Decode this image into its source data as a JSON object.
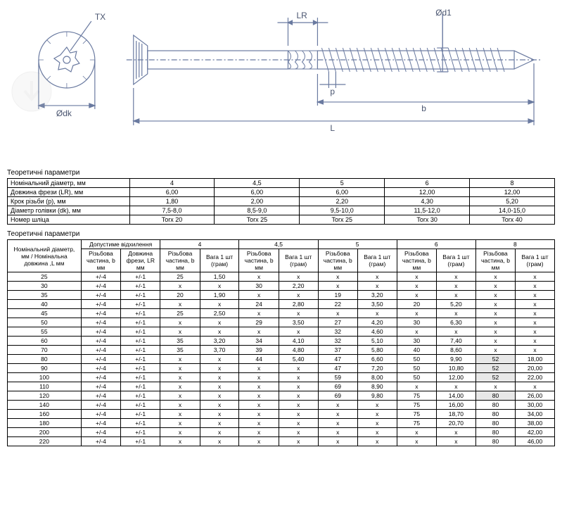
{
  "diagram": {
    "labels": {
      "TX": "TX",
      "LR": "LR",
      "d1": "Ød1",
      "p": "p",
      "b": "b",
      "L": "L",
      "dk": "Ødk"
    },
    "colors": {
      "line": "#6a7aa0",
      "text": "#4a5570"
    }
  },
  "table1": {
    "title": "Теоретичні параметри",
    "rows": [
      {
        "label": "Номінальний діаметр, мм",
        "vals": [
          "4",
          "4,5",
          "5",
          "6",
          "8"
        ]
      },
      {
        "label": "Довжина фрези (LR), мм",
        "vals": [
          "6,00",
          "6,00",
          "6,00",
          "12,00",
          "12,00"
        ]
      },
      {
        "label": "Крок різьби (p), мм",
        "vals": [
          "1,80",
          "2,00",
          "2,20",
          "4,30",
          "5,20"
        ]
      },
      {
        "label": "Діаметр голівки (dk), мм",
        "vals": [
          "7,5-8,0",
          "8,5-9,0",
          "9,5-10,0",
          "11,5-12,0",
          "14,0-15,0"
        ]
      },
      {
        "label": "Номер шліца",
        "vals": [
          "Torx 20",
          "Torx 25",
          "Torx 25",
          "Torx 30",
          "Torx 40"
        ]
      }
    ]
  },
  "table2": {
    "title": "Теоретичні параметри",
    "header1": "Номінальний діаметр, мм / Номінальна довжина ,L мм",
    "tolerance_header": "Допустиме відхилення",
    "diameters": [
      "4",
      "4,5",
      "5",
      "6",
      "8"
    ],
    "sub_tol": [
      "Різьбова частина, b мм",
      "Довжина фрези, LR мм"
    ],
    "sub_data": [
      "Різьбова частина, b мм",
      "Вага 1 шт (грам)"
    ],
    "rows": [
      {
        "len": "25",
        "tol": [
          "+/-4",
          "+/-1"
        ],
        "d4": [
          "25",
          "1,50"
        ],
        "d45": [
          "x",
          "x"
        ],
        "d5": [
          "x",
          "x"
        ],
        "d6": [
          "x",
          "x"
        ],
        "d8": [
          "x",
          "x"
        ]
      },
      {
        "len": "30",
        "tol": [
          "+/-4",
          "+/-1"
        ],
        "d4": [
          "x",
          "x"
        ],
        "d45": [
          "30",
          "2,20"
        ],
        "d5": [
          "x",
          "x"
        ],
        "d6": [
          "x",
          "x"
        ],
        "d8": [
          "x",
          "x"
        ]
      },
      {
        "len": "35",
        "tol": [
          "+/-4",
          "+/-1"
        ],
        "d4": [
          "20",
          "1,90"
        ],
        "d45": [
          "x",
          "x"
        ],
        "d5": [
          "19",
          "3,20"
        ],
        "d6": [
          "x",
          "x"
        ],
        "d8": [
          "x",
          "x"
        ]
      },
      {
        "len": "40",
        "tol": [
          "+/-4",
          "+/-1"
        ],
        "d4": [
          "x",
          "x"
        ],
        "d45": [
          "24",
          "2,80"
        ],
        "d5": [
          "22",
          "3,50"
        ],
        "d6": [
          "20",
          "5,20"
        ],
        "d8": [
          "x",
          "x"
        ]
      },
      {
        "len": "45",
        "tol": [
          "+/-4",
          "+/-1"
        ],
        "d4": [
          "25",
          "2,50"
        ],
        "d45": [
          "x",
          "x"
        ],
        "d5": [
          "x",
          "x"
        ],
        "d6": [
          "x",
          "x"
        ],
        "d8": [
          "x",
          "x"
        ]
      },
      {
        "len": "50",
        "tol": [
          "+/-4",
          "+/-1"
        ],
        "d4": [
          "x",
          "x"
        ],
        "d45": [
          "29",
          "3,50"
        ],
        "d5": [
          "27",
          "4,20"
        ],
        "d6": [
          "30",
          "6,30"
        ],
        "d8": [
          "x",
          "x"
        ]
      },
      {
        "len": "55",
        "tol": [
          "+/-4",
          "+/-1"
        ],
        "d4": [
          "x",
          "x"
        ],
        "d45": [
          "x",
          "x"
        ],
        "d5": [
          "32",
          "4,60"
        ],
        "d6": [
          "x",
          "x"
        ],
        "d8": [
          "x",
          "x"
        ]
      },
      {
        "len": "60",
        "tol": [
          "+/-4",
          "+/-1"
        ],
        "d4": [
          "35",
          "3,20"
        ],
        "d45": [
          "34",
          "4,10"
        ],
        "d5": [
          "32",
          "5,10"
        ],
        "d6": [
          "30",
          "7,40"
        ],
        "d8": [
          "x",
          "x"
        ]
      },
      {
        "len": "70",
        "tol": [
          "+/-4",
          "+/-1"
        ],
        "d4": [
          "35",
          "3,70"
        ],
        "d45": [
          "39",
          "4,80"
        ],
        "d5": [
          "37",
          "5,80"
        ],
        "d6": [
          "40",
          "8,60"
        ],
        "d8": [
          "x",
          "x"
        ]
      },
      {
        "len": "80",
        "tol": [
          "+/-4",
          "+/-1"
        ],
        "d4": [
          "x",
          "x"
        ],
        "d45": [
          "44",
          "5,40"
        ],
        "d5": [
          "47",
          "6,60"
        ],
        "d6": [
          "50",
          "9,90"
        ],
        "d8": [
          "52",
          "18,00"
        ],
        "shade": [
          11
        ]
      },
      {
        "len": "90",
        "tol": [
          "+/-4",
          "+/-1"
        ],
        "d4": [
          "x",
          "x"
        ],
        "d45": [
          "x",
          "x"
        ],
        "d5": [
          "47",
          "7,20"
        ],
        "d6": [
          "50",
          "10,80"
        ],
        "d8": [
          "52",
          "20,00"
        ],
        "shade": [
          11
        ]
      },
      {
        "len": "100",
        "tol": [
          "+/-4",
          "+/-1"
        ],
        "d4": [
          "x",
          "x"
        ],
        "d45": [
          "x",
          "x"
        ],
        "d5": [
          "59",
          "8,00"
        ],
        "d6": [
          "50",
          "12,00"
        ],
        "d8": [
          "52",
          "22,00"
        ],
        "shade": [
          11
        ]
      },
      {
        "len": "110",
        "tol": [
          "+/-4",
          "+/-1"
        ],
        "d4": [
          "x",
          "x"
        ],
        "d45": [
          "x",
          "x"
        ],
        "d5": [
          "69",
          "8,90"
        ],
        "d6": [
          "x",
          "x"
        ],
        "d8": [
          "x",
          "x"
        ]
      },
      {
        "len": "120",
        "tol": [
          "+/-4",
          "+/-1"
        ],
        "d4": [
          "x",
          "x"
        ],
        "d45": [
          "x",
          "x"
        ],
        "d5": [
          "69",
          "9,80"
        ],
        "d6": [
          "75",
          "14,00"
        ],
        "d8": [
          "80",
          "26,00"
        ],
        "shade": [
          11
        ]
      },
      {
        "len": "140",
        "tol": [
          "+/-4",
          "+/-1"
        ],
        "d4": [
          "x",
          "x"
        ],
        "d45": [
          "x",
          "x"
        ],
        "d5": [
          "x",
          "x"
        ],
        "d6": [
          "75",
          "16,00"
        ],
        "d8": [
          "80",
          "30,00"
        ]
      },
      {
        "len": "160",
        "tol": [
          "+/-4",
          "+/-1"
        ],
        "d4": [
          "x",
          "x"
        ],
        "d45": [
          "x",
          "x"
        ],
        "d5": [
          "x",
          "x"
        ],
        "d6": [
          "75",
          "18,70"
        ],
        "d8": [
          "80",
          "34,00"
        ]
      },
      {
        "len": "180",
        "tol": [
          "+/-4",
          "+/-1"
        ],
        "d4": [
          "x",
          "x"
        ],
        "d45": [
          "x",
          "x"
        ],
        "d5": [
          "x",
          "x"
        ],
        "d6": [
          "75",
          "20,70"
        ],
        "d8": [
          "80",
          "38,00"
        ]
      },
      {
        "len": "200",
        "tol": [
          "+/-4",
          "+/-1"
        ],
        "d4": [
          "x",
          "x"
        ],
        "d45": [
          "x",
          "x"
        ],
        "d5": [
          "x",
          "x"
        ],
        "d6": [
          "x",
          "x"
        ],
        "d8": [
          "80",
          "42,00"
        ]
      },
      {
        "len": "220",
        "tol": [
          "+/-4",
          "+/-1"
        ],
        "d4": [
          "x",
          "x"
        ],
        "d45": [
          "x",
          "x"
        ],
        "d5": [
          "x",
          "x"
        ],
        "d6": [
          "x",
          "x"
        ],
        "d8": [
          "80",
          "46,00"
        ]
      }
    ]
  }
}
